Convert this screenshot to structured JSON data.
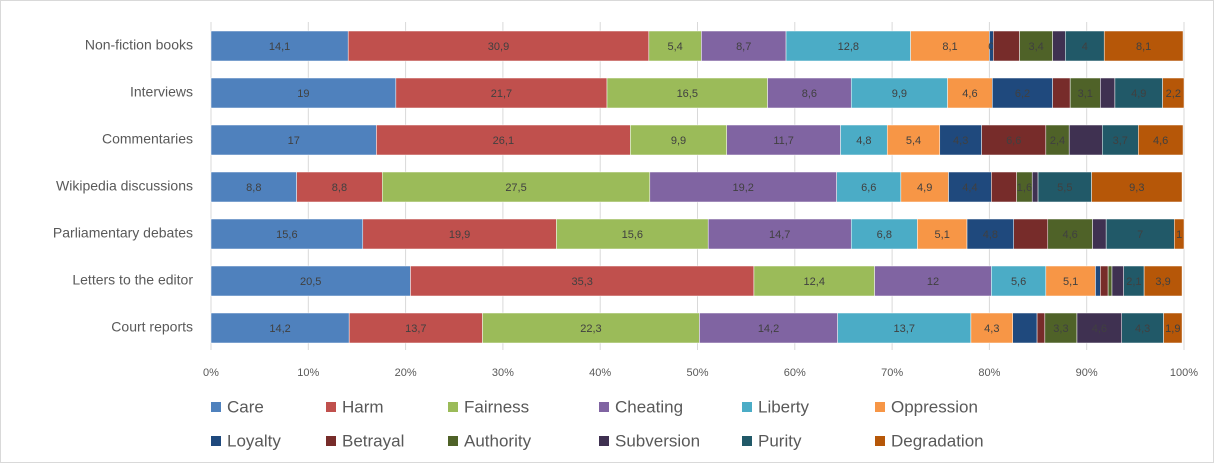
{
  "chart_data": {
    "type": "stacked_barh",
    "categories": [
      "Non-fiction books",
      "Interviews",
      "Commentaries",
      "Wikipedia discussions",
      "Parliamentary debates",
      "Letters to the editor",
      "Court reports"
    ],
    "series": [
      {
        "name": "Care",
        "color": "#4f81bd",
        "values": [
          14.1,
          19,
          17,
          8.8,
          15.6,
          20.5,
          14.2
        ],
        "value_labels": [
          "14,1",
          "19",
          "17",
          "8,8",
          "15,6",
          "20,5",
          "14,2"
        ]
      },
      {
        "name": "Harm",
        "color": "#c0504d",
        "values": [
          30.9,
          21.7,
          26.1,
          8.8,
          19.9,
          35.3,
          13.7
        ],
        "value_labels": [
          "30,9",
          "21,7",
          "26,1",
          "8,8",
          "19,9",
          "35,3",
          "13,7"
        ]
      },
      {
        "name": "Fairness",
        "color": "#9bbb59",
        "values": [
          5.4,
          16.5,
          9.9,
          27.5,
          15.6,
          12.4,
          22.3
        ],
        "value_labels": [
          "5,4",
          "16,5",
          "9,9",
          "27,5",
          "15,6",
          "12,4",
          "22,3"
        ]
      },
      {
        "name": "Cheating",
        "color": "#8064a2",
        "values": [
          8.7,
          8.6,
          11.7,
          19.2,
          14.7,
          12,
          14.2
        ],
        "value_labels": [
          "8,7",
          "8,6",
          "11,7",
          "19,2",
          "14,7",
          "12",
          "14,2"
        ]
      },
      {
        "name": "Liberty",
        "color": "#4bacc6",
        "values": [
          12.8,
          9.9,
          4.8,
          6.6,
          6.8,
          5.6,
          13.7
        ],
        "value_labels": [
          "12,8",
          "9,9",
          "4,8",
          "6,6",
          "6,8",
          "5,6",
          "13,7"
        ]
      },
      {
        "name": "Oppression",
        "color": "#f79646",
        "values": [
          8.1,
          4.6,
          5.4,
          4.9,
          5.1,
          5.1,
          4.3
        ],
        "value_labels": [
          "8,1",
          "4,6",
          "5,4",
          "4,9",
          "5,1",
          "5,1",
          "4,3"
        ]
      },
      {
        "name": "Loyalty",
        "color": "#1f497d",
        "values": [
          0.4,
          6.2,
          4.3,
          4.4,
          4.8,
          0.5,
          2.5
        ],
        "value_labels": [
          "0",
          "6,2",
          "4,3",
          "4,4",
          "4,8",
          null,
          null
        ]
      },
      {
        "name": "Betrayal",
        "color": "#772c2a",
        "values": [
          2.7,
          1.8,
          6.6,
          2.6,
          3.5,
          0.8,
          0.8
        ],
        "value_labels": [
          null,
          null,
          "6,6",
          null,
          null,
          null,
          null
        ]
      },
      {
        "name": "Authority",
        "color": "#4f6228",
        "values": [
          3.4,
          3.1,
          2.4,
          1.6,
          4.6,
          0.4,
          3.3
        ],
        "value_labels": [
          "3,4",
          "3,1",
          "2,4",
          "1,6",
          "4,6",
          null,
          "3,3"
        ]
      },
      {
        "name": "Subversion",
        "color": "#3f3151",
        "values": [
          1.3,
          1.5,
          3.4,
          0.6,
          1.4,
          1.2,
          4.6
        ],
        "value_labels": [
          null,
          null,
          null,
          null,
          null,
          null,
          "4,6"
        ]
      },
      {
        "name": "Purity",
        "color": "#215968",
        "values": [
          4,
          4.9,
          3.7,
          5.5,
          7,
          2.1,
          4.3
        ],
        "value_labels": [
          "4",
          "4,9",
          "3,7",
          "5,5",
          "7",
          "2,1",
          "4,3"
        ]
      },
      {
        "name": "Degradation",
        "color": "#b65708",
        "values": [
          8.1,
          2.2,
          4.6,
          9.3,
          1,
          3.9,
          1.9
        ],
        "value_labels": [
          "8,1",
          "2,2",
          "4,6",
          "9,3",
          "1",
          "3,9",
          "1,9"
        ]
      }
    ],
    "xlim": [
      0,
      100
    ],
    "xticks": [
      {
        "value": 0,
        "label": "0%"
      },
      {
        "value": 10,
        "label": "10%"
      },
      {
        "value": 20,
        "label": "20%"
      },
      {
        "value": 30,
        "label": "30%"
      },
      {
        "value": 40,
        "label": "40%"
      },
      {
        "value": 50,
        "label": "50%"
      },
      {
        "value": 60,
        "label": "60%"
      },
      {
        "value": 70,
        "label": "70%"
      },
      {
        "value": 80,
        "label": "80%"
      },
      {
        "value": 90,
        "label": "90%"
      },
      {
        "value": 100,
        "label": "100%"
      }
    ],
    "grid": true,
    "legend": "bottom"
  }
}
